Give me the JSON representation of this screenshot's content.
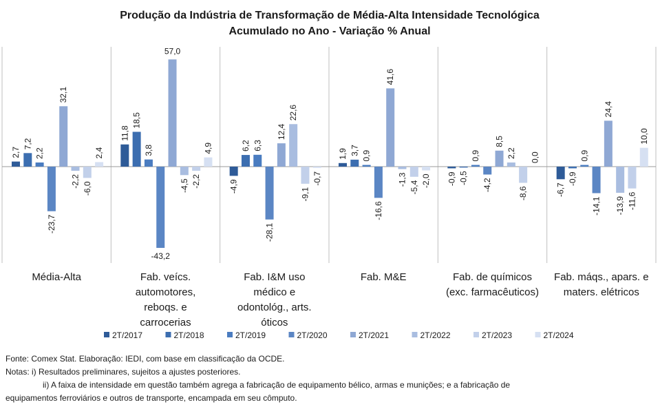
{
  "chart_data": {
    "type": "bar",
    "title": [
      "Produção da Indústria de Transformação de Média-Alta Intensidade Tecnológica",
      "Acumulado no Ano - Variação % Anual"
    ],
    "categories": [
      [
        "Média-Alta"
      ],
      [
        "Fab. veícs.",
        "automotores,",
        "reboqs. e",
        "carrocerias"
      ],
      [
        "Fab. I&M uso",
        "médico e",
        "odontológ., arts.",
        "óticos"
      ],
      [
        "Fab. M&E"
      ],
      [
        "Fab. de químicos",
        "(exc. farmacêuticos)"
      ],
      [
        "Fab. máqs., apars. e",
        "maters. elétricos"
      ]
    ],
    "series": [
      {
        "name": "2T/2017",
        "color": "#2e5b98",
        "values": [
          2.7,
          11.8,
          -4.9,
          1.9,
          -0.9,
          -6.7
        ]
      },
      {
        "name": "2T/2018",
        "color": "#3c6eb0",
        "values": [
          7.2,
          18.5,
          6.2,
          3.7,
          -0.5,
          -0.9
        ]
      },
      {
        "name": "2T/2019",
        "color": "#4a7cc0",
        "values": [
          2.2,
          3.8,
          6.3,
          0.9,
          0.9,
          0.9
        ]
      },
      {
        "name": "2T/2020",
        "color": "#5b86c4",
        "values": [
          -23.7,
          -43.2,
          -28.1,
          -16.6,
          -4.2,
          -14.1
        ]
      },
      {
        "name": "2T/2021",
        "color": "#8fa8d4",
        "values": [
          32.1,
          57.0,
          12.4,
          41.6,
          8.5,
          24.4
        ]
      },
      {
        "name": "2T/2022",
        "color": "#a9bde0",
        "values": [
          -2.2,
          -4.5,
          22.6,
          -1.3,
          2.2,
          -13.9
        ]
      },
      {
        "name": "2T/2023",
        "color": "#c2d0ea",
        "values": [
          -6.0,
          -2.2,
          -9.1,
          -5.4,
          -8.6,
          -11.6
        ]
      },
      {
        "name": "2T/2024",
        "color": "#d6e0f2",
        "values": [
          2.4,
          4.9,
          -0.7,
          -2.0,
          0.0,
          10.0
        ]
      }
    ],
    "ylim": [
      -50,
      62
    ],
    "grid": false,
    "legend_position": "bottom"
  },
  "notes": {
    "source": "Fonte: Comex Stat. Elaboração: IEDI, com base em classificação da OCDE.",
    "note_1": "Notas: i) Resultados preliminares, sujeitos a ajustes posteriores.",
    "note_2": "ii) A faixa de intensidade em questão também agrega a fabricação de equipamento bélico, armas e munições; e a fabricação de",
    "note_3": "equipamentos ferroviários e outros de transporte, encampada em seu cômputo."
  }
}
